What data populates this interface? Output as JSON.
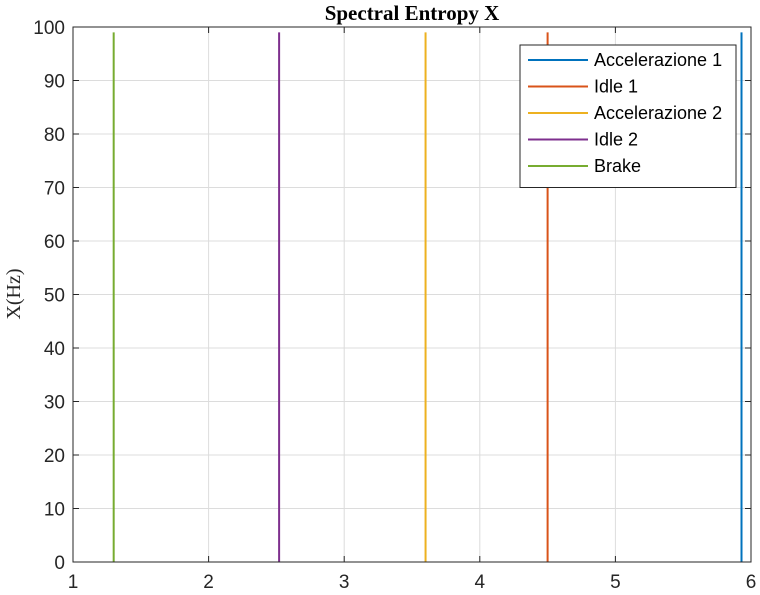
{
  "chart_data": {
    "type": "line",
    "title": "Spectral Entropy X",
    "xlabel": "",
    "ylabel": "X(Hz)",
    "xlim": [
      1,
      6
    ],
    "ylim": [
      0,
      100
    ],
    "xticks": [
      1,
      2,
      3,
      4,
      5,
      6
    ],
    "yticks": [
      0,
      10,
      20,
      30,
      40,
      50,
      60,
      70,
      80,
      90,
      100
    ],
    "grid": true,
    "legend_position": "top-right",
    "series": [
      {
        "name": "Accelerazione 1",
        "color": "#0072BD",
        "x": [
          5.93,
          5.93
        ],
        "y": [
          0,
          99
        ]
      },
      {
        "name": "Idle 1",
        "color": "#D95319",
        "x": [
          4.5,
          4.5
        ],
        "y": [
          0,
          99
        ]
      },
      {
        "name": "Accelerazione 2",
        "color": "#EDB120",
        "x": [
          3.6,
          3.6
        ],
        "y": [
          0,
          99
        ]
      },
      {
        "name": "Idle 2",
        "color": "#7E2F8E",
        "x": [
          2.52,
          2.52
        ],
        "y": [
          0,
          99
        ]
      },
      {
        "name": "Brake",
        "color": "#77AC30",
        "x": [
          1.3,
          1.3
        ],
        "y": [
          0,
          99
        ]
      }
    ]
  }
}
